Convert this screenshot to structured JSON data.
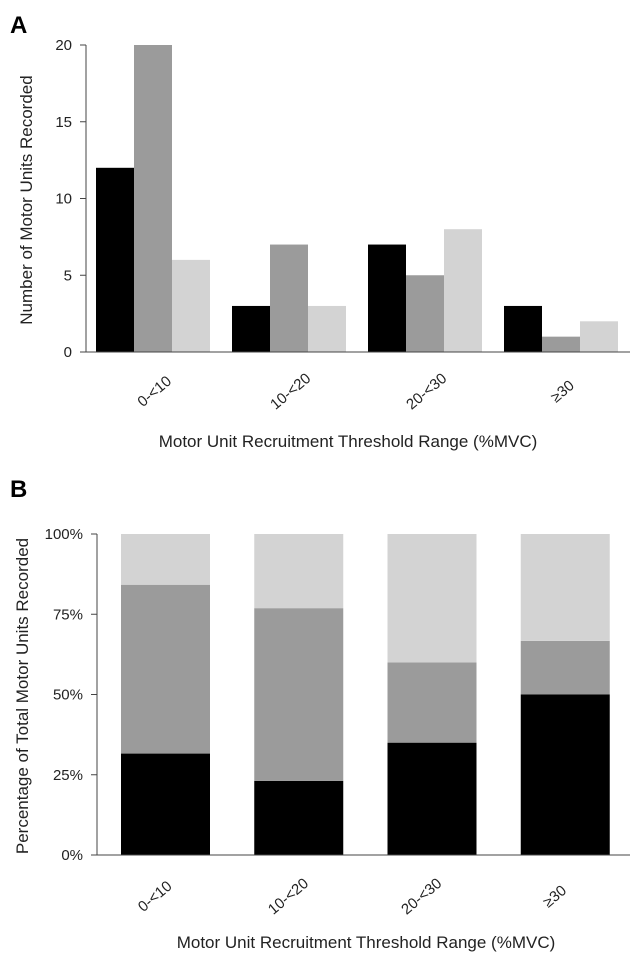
{
  "chart_data": [
    {
      "panel": "A",
      "type": "bar",
      "categories": [
        "0-<10",
        "10-<20",
        "20-<30",
        "≥30"
      ],
      "series": [
        {
          "values": [
            12,
            3,
            7,
            3
          ]
        },
        {
          "values": [
            20,
            7,
            5,
            1
          ]
        },
        {
          "values": [
            6,
            3,
            8,
            2
          ]
        }
      ],
      "xlabel": "Motor Unit Recruitment Threshold Range (%MVC)",
      "ylabel": "Number of Motor Units Recorded",
      "ylim": [
        0,
        20
      ],
      "yticks": [
        0,
        5,
        10,
        15,
        20
      ],
      "ytick_labels": [
        "0",
        "5",
        "10",
        "15",
        "20"
      ],
      "grid": false
    },
    {
      "panel": "B",
      "type": "bar",
      "stacked": true,
      "categories": [
        "0-<10",
        "10-<20",
        "20-<30",
        "≥30"
      ],
      "series": [
        {
          "values": [
            31.6,
            23.1,
            35.0,
            50.0
          ]
        },
        {
          "values": [
            52.6,
            53.8,
            25.0,
            16.7
          ]
        },
        {
          "values": [
            15.8,
            23.1,
            40.0,
            33.3
          ]
        }
      ],
      "xlabel": "Motor Unit Recruitment Threshold Range (%MVC)",
      "ylabel": "Percentage of Total Motor Units Recorded",
      "ylim": [
        0,
        100
      ],
      "yticks": [
        0,
        25,
        50,
        75,
        100
      ],
      "ytick_labels": [
        "0%",
        "25%",
        "50%",
        "75%",
        "100%"
      ],
      "grid": false
    }
  ],
  "colors": [
    "#000000",
    "#9b9b9b",
    "#d3d3d3"
  ]
}
